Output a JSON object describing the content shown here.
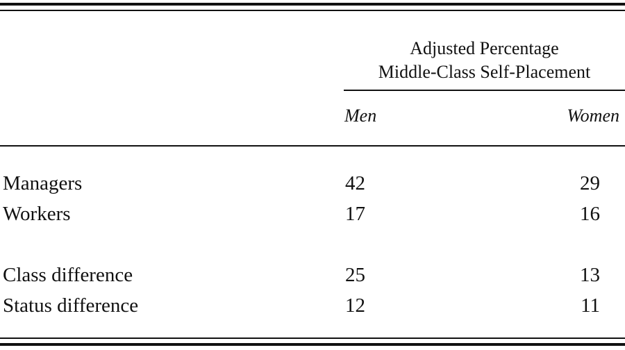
{
  "table": {
    "spanner_line1": "Adjusted Percentage",
    "spanner_line2": "Middle-Class Self-Placement",
    "col_men": "Men",
    "col_women": "Women",
    "rows": [
      {
        "label": "Managers",
        "men": "42",
        "women": "29"
      },
      {
        "label": "Workers",
        "men": "17",
        "women": "16"
      },
      {
        "label": "Class difference",
        "men": "25",
        "women": "13"
      },
      {
        "label": "Status difference",
        "men": "12",
        "women": "11"
      }
    ]
  }
}
